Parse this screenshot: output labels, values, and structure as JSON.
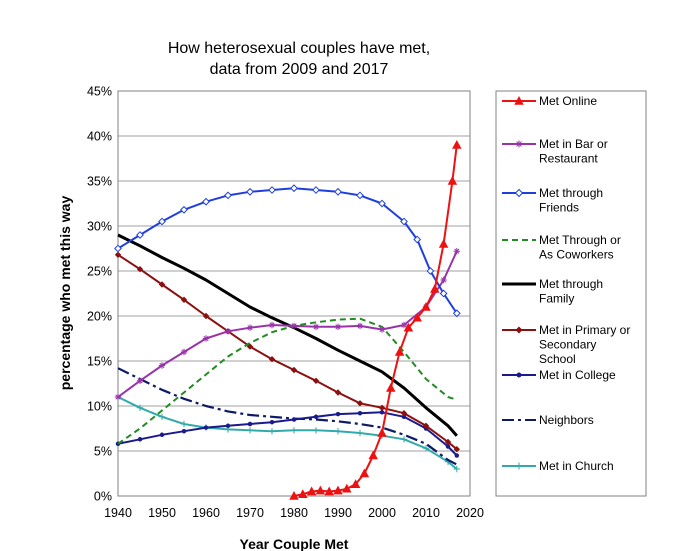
{
  "chart_data": {
    "type": "line",
    "title_lines": [
      "How heterosexual couples have met,",
      "data from 2009 and 2017"
    ],
    "xlabel": "Year Couple Met",
    "ylabel": "percentage who met this way",
    "xlim": [
      1940,
      2020
    ],
    "ylim": [
      0,
      45
    ],
    "x_ticks": [
      1940,
      1950,
      1960,
      1970,
      1980,
      1990,
      2000,
      2010,
      2020
    ],
    "y_ticks": [
      0,
      5,
      10,
      15,
      20,
      25,
      30,
      35,
      40,
      45
    ],
    "y_tick_labels": [
      "0%",
      "5%",
      "10%",
      "15%",
      "20%",
      "25%",
      "30%",
      "35%",
      "40%",
      "45%"
    ],
    "grid": "horizontal",
    "legend_position": "right",
    "series": [
      {
        "name_lines": [
          "Met Online"
        ],
        "color": "#ee1111",
        "marker": "triangle",
        "dash": "solid",
        "points": [
          [
            1980,
            0
          ],
          [
            1982,
            0.2
          ],
          [
            1984,
            0.5
          ],
          [
            1986,
            0.6
          ],
          [
            1988,
            0.5
          ],
          [
            1990,
            0.6
          ],
          [
            1992,
            0.8
          ],
          [
            1994,
            1.3
          ],
          [
            1996,
            2.5
          ],
          [
            1998,
            4.5
          ],
          [
            2000,
            7
          ],
          [
            2002,
            12
          ],
          [
            2004,
            16
          ],
          [
            2006,
            18.7
          ],
          [
            2008,
            19.8
          ],
          [
            2010,
            21
          ],
          [
            2012,
            23
          ],
          [
            2014,
            28
          ],
          [
            2016,
            35
          ],
          [
            2017,
            39
          ]
        ]
      },
      {
        "name_lines": [
          "Met in Bar or",
          "Restaurant"
        ],
        "color": "#9933aa",
        "marker": "star",
        "dash": "solid",
        "points": [
          [
            1940,
            11
          ],
          [
            1945,
            12.8
          ],
          [
            1950,
            14.5
          ],
          [
            1955,
            16
          ],
          [
            1960,
            17.5
          ],
          [
            1965,
            18.3
          ],
          [
            1970,
            18.7
          ],
          [
            1975,
            19
          ],
          [
            1980,
            18.9
          ],
          [
            1985,
            18.8
          ],
          [
            1990,
            18.8
          ],
          [
            1995,
            18.9
          ],
          [
            2000,
            18.5
          ],
          [
            2005,
            19
          ],
          [
            2010,
            21
          ],
          [
            2014,
            24
          ],
          [
            2017,
            27.2
          ]
        ]
      },
      {
        "name_lines": [
          "Met through",
          "Friends"
        ],
        "color": "#1f3fdd",
        "marker": "diamond-open",
        "dash": "solid",
        "points": [
          [
            1940,
            27.5
          ],
          [
            1945,
            29
          ],
          [
            1950,
            30.5
          ],
          [
            1955,
            31.8
          ],
          [
            1960,
            32.7
          ],
          [
            1965,
            33.4
          ],
          [
            1970,
            33.8
          ],
          [
            1975,
            34
          ],
          [
            1980,
            34.2
          ],
          [
            1985,
            34
          ],
          [
            1990,
            33.8
          ],
          [
            1995,
            33.4
          ],
          [
            2000,
            32.5
          ],
          [
            2005,
            30.5
          ],
          [
            2008,
            28.5
          ],
          [
            2011,
            25
          ],
          [
            2014,
            22.5
          ],
          [
            2017,
            20.3
          ]
        ]
      },
      {
        "name_lines": [
          "Met Through or",
          "As Coworkers"
        ],
        "color": "#228b22",
        "marker": "none",
        "dash": "dash",
        "points": [
          [
            1940,
            5.8
          ],
          [
            1945,
            7.5
          ],
          [
            1950,
            9.5
          ],
          [
            1955,
            11.5
          ],
          [
            1960,
            13.5
          ],
          [
            1965,
            15.5
          ],
          [
            1970,
            17
          ],
          [
            1975,
            18.2
          ],
          [
            1980,
            18.9
          ],
          [
            1985,
            19.3
          ],
          [
            1990,
            19.6
          ],
          [
            1995,
            19.7
          ],
          [
            2000,
            18.8
          ],
          [
            2005,
            16
          ],
          [
            2010,
            13
          ],
          [
            2015,
            11
          ],
          [
            2017,
            10.7
          ]
        ]
      },
      {
        "name_lines": [
          "Met through",
          "Family"
        ],
        "color": "#000000",
        "marker": "none",
        "dash": "solid",
        "points": [
          [
            1940,
            29
          ],
          [
            1945,
            27.8
          ],
          [
            1950,
            26.5
          ],
          [
            1955,
            25.3
          ],
          [
            1960,
            24
          ],
          [
            1965,
            22.5
          ],
          [
            1970,
            21
          ],
          [
            1975,
            19.8
          ],
          [
            1980,
            18.7
          ],
          [
            1985,
            17.5
          ],
          [
            1990,
            16.2
          ],
          [
            1995,
            15
          ],
          [
            2000,
            13.8
          ],
          [
            2005,
            12
          ],
          [
            2010,
            9.8
          ],
          [
            2015,
            7.8
          ],
          [
            2017,
            6.7
          ]
        ]
      },
      {
        "name_lines": [
          "Met in Primary or",
          "Secondary",
          "School"
        ],
        "color": "#8b1010",
        "marker": "diamond",
        "dash": "solid",
        "points": [
          [
            1940,
            26.8
          ],
          [
            1945,
            25.2
          ],
          [
            1950,
            23.5
          ],
          [
            1955,
            21.8
          ],
          [
            1960,
            20
          ],
          [
            1965,
            18.3
          ],
          [
            1970,
            16.6
          ],
          [
            1975,
            15.2
          ],
          [
            1980,
            14
          ],
          [
            1985,
            12.8
          ],
          [
            1990,
            11.5
          ],
          [
            1995,
            10.3
          ],
          [
            2000,
            9.8
          ],
          [
            2005,
            9.2
          ],
          [
            2010,
            7.8
          ],
          [
            2015,
            6
          ],
          [
            2017,
            5.2
          ]
        ]
      },
      {
        "name_lines": [
          "Met in College"
        ],
        "color": "#1a1a8c",
        "marker": "dot",
        "dash": "solid",
        "points": [
          [
            1940,
            5.8
          ],
          [
            1945,
            6.3
          ],
          [
            1950,
            6.8
          ],
          [
            1955,
            7.2
          ],
          [
            1960,
            7.6
          ],
          [
            1965,
            7.8
          ],
          [
            1970,
            8
          ],
          [
            1975,
            8.2
          ],
          [
            1980,
            8.5
          ],
          [
            1985,
            8.8
          ],
          [
            1990,
            9.1
          ],
          [
            1995,
            9.2
          ],
          [
            2000,
            9.3
          ],
          [
            2005,
            8.8
          ],
          [
            2010,
            7.5
          ],
          [
            2015,
            5.5
          ],
          [
            2017,
            4.5
          ]
        ]
      },
      {
        "name_lines": [
          "Neighbors"
        ],
        "color": "#0d1a66",
        "marker": "none",
        "dash": "dashdot",
        "points": [
          [
            1940,
            14.2
          ],
          [
            1945,
            13
          ],
          [
            1950,
            11.8
          ],
          [
            1955,
            10.8
          ],
          [
            1960,
            10
          ],
          [
            1965,
            9.4
          ],
          [
            1970,
            9
          ],
          [
            1975,
            8.8
          ],
          [
            1980,
            8.6
          ],
          [
            1985,
            8.5
          ],
          [
            1990,
            8.3
          ],
          [
            1995,
            8
          ],
          [
            2000,
            7.6
          ],
          [
            2005,
            6.8
          ],
          [
            2010,
            5.8
          ],
          [
            2015,
            4
          ],
          [
            2017,
            3.5
          ]
        ]
      },
      {
        "name_lines": [
          "Met in Church"
        ],
        "color": "#33aaaa",
        "marker": "plus",
        "dash": "solid",
        "points": [
          [
            1940,
            11
          ],
          [
            1945,
            9.8
          ],
          [
            1950,
            8.8
          ],
          [
            1955,
            8
          ],
          [
            1960,
            7.6
          ],
          [
            1965,
            7.4
          ],
          [
            1970,
            7.3
          ],
          [
            1975,
            7.2
          ],
          [
            1980,
            7.3
          ],
          [
            1985,
            7.3
          ],
          [
            1990,
            7.2
          ],
          [
            1995,
            7
          ],
          [
            2000,
            6.7
          ],
          [
            2005,
            6.3
          ],
          [
            2010,
            5.3
          ],
          [
            2015,
            3.8
          ],
          [
            2017,
            3
          ]
        ]
      }
    ]
  }
}
